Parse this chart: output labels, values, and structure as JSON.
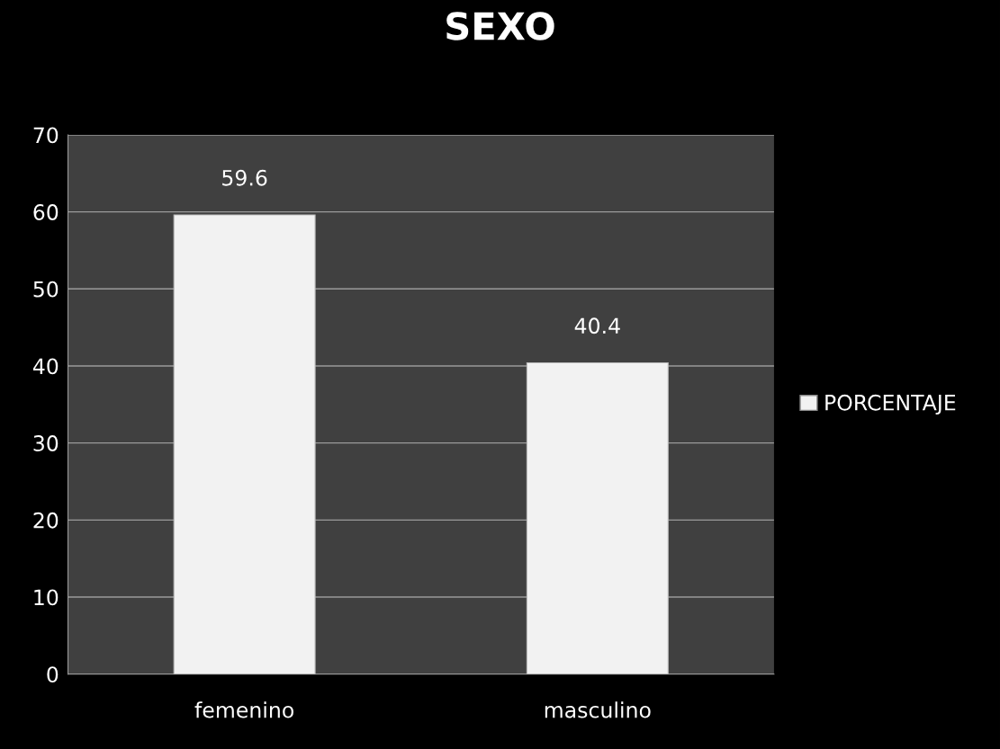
{
  "chart_data": {
    "type": "bar",
    "title": "SEXO",
    "categories": [
      "femenino",
      "masculino"
    ],
    "series": [
      {
        "name": "PORCENTAJE",
        "color": "#f2f2f2",
        "values": [
          59.6,
          40.4
        ]
      }
    ],
    "ylim": [
      0,
      70
    ],
    "yticks": [
      0,
      10,
      20,
      30,
      40,
      50,
      60,
      70
    ],
    "grid": "y",
    "legend": "right",
    "data_labels": true
  }
}
